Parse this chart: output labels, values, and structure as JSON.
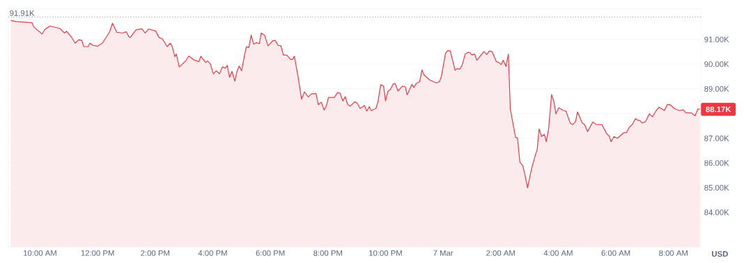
{
  "chart_data": {
    "type": "area",
    "color": "#ea3943",
    "x": [
      "--03-06T08:59",
      "--03-06T09:11",
      "--03-06T09:43",
      "--03-06T09:47",
      "--03-06T10:04",
      "--03-06T10:10",
      "--03-06T10:20",
      "--03-06T10:41",
      "--03-06T10:51",
      "--03-06T10:55",
      "--03-06T11:05",
      "--03-06T11:13",
      "--03-06T11:21",
      "--03-06T11:27",
      "--03-06T11:31",
      "--03-06T11:40",
      "--03-06T11:44",
      "--03-06T11:50",
      "--03-06T12:00",
      "--03-06T12:10",
      "--03-06T12:25",
      "--03-06T12:31",
      "--03-06T12:40",
      "--03-06T12:51",
      "--03-06T13:00",
      "--03-06T13:05",
      "--03-06T13:08",
      "--03-06T13:20",
      "--03-06T13:32",
      "--03-06T13:39",
      "--03-06T13:46",
      "--03-06T14:01",
      "--03-06T14:08",
      "--03-06T14:15",
      "--03-06T14:25",
      "--03-06T14:31",
      "--03-06T14:35",
      "--03-06T14:41",
      "--03-06T14:44",
      "--03-06T14:50",
      "--03-06T15:03",
      "--03-06T15:10",
      "--03-06T15:20",
      "--03-06T15:31",
      "--03-06T15:35",
      "--03-06T15:45",
      "--03-06T15:49",
      "--03-06T15:55",
      "--03-06T16:01",
      "--03-06T16:07",
      "--03-06T16:14",
      "--03-06T16:20",
      "--03-06T16:26",
      "--03-06T16:30",
      "--03-06T16:35",
      "--03-06T16:40",
      "--03-06T16:46",
      "--03-06T16:50",
      "--03-06T16:55",
      "--03-06T17:00",
      "--03-06T17:06",
      "--03-06T17:10",
      "--03-06T17:15",
      "--03-06T17:20",
      "--03-06T17:25",
      "--03-06T17:31",
      "--03-06T17:37",
      "--03-06T17:41",
      "--03-06T17:48",
      "--03-06T17:55",
      "--03-06T18:05",
      "--03-06T18:10",
      "--03-06T18:16",
      "--03-06T18:22",
      "--03-06T18:27",
      "--03-06T18:34",
      "--03-06T18:42",
      "--03-06T18:46",
      "--03-06T18:50",
      "--03-06T18:58",
      "--03-06T19:05",
      "--03-06T19:11",
      "--03-06T19:19",
      "--03-06T19:25",
      "--03-06T19:35",
      "--03-06T19:40",
      "--03-06T19:46",
      "--03-06T19:52",
      "--03-06T19:56",
      "--03-06T20:01",
      "--03-06T20:13",
      "--03-06T20:20",
      "--03-06T20:25",
      "--03-06T20:31",
      "--03-06T20:36",
      "--03-06T20:41",
      "--03-06T20:46",
      "--03-06T20:56",
      "--03-06T21:01",
      "--03-06T21:07",
      "--03-06T21:11",
      "--03-06T21:16",
      "--03-06T21:21",
      "--03-06T21:26",
      "--03-06T21:30",
      "--03-06T21:40",
      "--03-06T21:44",
      "--03-06T21:50",
      "--03-06T21:56",
      "--03-06T22:00",
      "--03-06T22:05",
      "--03-06T22:10",
      "--03-06T22:16",
      "--03-06T22:20",
      "--03-06T22:26",
      "--03-06T22:35",
      "--03-06T22:41",
      "--03-06T22:45",
      "--03-06T22:55",
      "--03-06T22:59",
      "--03-06T23:04",
      "--03-06T23:11",
      "--03-06T23:16",
      "--03-06T23:20",
      "--03-06T23:32",
      "--03-06T23:46",
      "--03-06T23:52",
      "--03-06T23:56",
      "--03-07T00:05",
      "--03-07T00:10",
      "--03-07T00:15",
      "--03-07T00:25",
      "--03-07T00:29",
      "--03-07T00:35",
      "--03-07T00:40",
      "--03-07T00:46",
      "--03-07T00:52",
      "--03-07T00:56",
      "--03-07T01:00",
      "--03-07T01:06",
      "--03-07T01:10",
      "--03-07T01:17",
      "--03-07T01:25",
      "--03-07T01:31",
      "--03-07T01:36",
      "--03-07T01:42",
      "--03-07T01:51",
      "--03-07T01:56",
      "--03-07T02:01",
      "--03-07T02:05",
      "--03-07T02:11",
      "--03-07T02:16",
      "--03-07T02:20",
      "--03-07T02:26",
      "--03-07T02:31",
      "--03-07T02:35",
      "--03-07T02:40",
      "--03-07T02:46",
      "--03-07T02:50",
      "--03-07T02:56",
      "--03-07T03:02",
      "--03-07T03:06",
      "--03-07T03:13",
      "--03-07T03:16",
      "--03-07T03:20",
      "--03-07T03:25",
      "--03-07T03:31",
      "--03-07T03:35",
      "--03-07T03:40",
      "--03-07T03:46",
      "--03-07T03:51",
      "--03-07T03:55",
      "--03-07T04:01",
      "--03-07T04:11",
      "--03-07T04:16",
      "--03-07T04:25",
      "--03-07T04:30",
      "--03-07T04:36",
      "--03-07T04:40",
      "--03-07T04:50",
      "--03-07T04:55",
      "--03-07T05:01",
      "--03-07T05:12",
      "--03-07T05:19",
      "--03-07T05:31",
      "--03-07T05:41",
      "--03-07T05:46",
      "--03-07T05:50",
      "--03-07T05:56",
      "--03-07T06:03",
      "--03-07T06:17",
      "--03-07T06:22",
      "--03-07T06:28",
      "--03-07T06:34",
      "--03-07T06:41",
      "--03-07T06:45",
      "--03-07T06:49",
      "--03-07T06:55",
      "--03-07T07:02",
      "--03-07T07:10",
      "--03-07T07:16",
      "--03-07T07:24",
      "--03-07T07:30",
      "--03-07T07:41",
      "--03-07T07:47",
      "--03-07T07:53",
      "--03-07T08:03",
      "--03-07T08:13",
      "--03-07T08:20",
      "--03-07T08:26",
      "--03-07T08:37",
      "--03-07T08:45",
      "--03-07T08:51",
      "--03-07T08:55"
    ],
    "values": [
      91.77,
      91.72,
      91.68,
      91.51,
      91.22,
      91.4,
      91.54,
      91.45,
      91.26,
      91.33,
      91.11,
      90.85,
      90.99,
      90.96,
      90.71,
      90.71,
      90.85,
      90.76,
      90.73,
      90.85,
      91.31,
      91.66,
      91.29,
      91.26,
      91.31,
      91.11,
      91.08,
      91.39,
      91.43,
      91.26,
      91.42,
      91.34,
      91.08,
      91.02,
      90.71,
      90.85,
      90.74,
      90.3,
      90.41,
      89.89,
      90.12,
      90.33,
      90.18,
      90.1,
      90.32,
      90.07,
      90.13,
      90.01,
      89.61,
      89.73,
      89.61,
      89.89,
      89.84,
      89.95,
      89.47,
      89.71,
      89.31,
      89.68,
      89.93,
      89.73,
      90.35,
      90.71,
      90.67,
      91.17,
      90.81,
      90.87,
      90.83,
      91.26,
      91.17,
      90.74,
      90.95,
      90.96,
      90.76,
      90.74,
      90.37,
      90.37,
      90.19,
      90.19,
      90.32,
      89.47,
      88.58,
      88.88,
      88.67,
      88.79,
      88.81,
      88.36,
      88.46,
      88.14,
      88.28,
      88.65,
      88.65,
      88.85,
      88.83,
      88.51,
      88.69,
      88.37,
      88.3,
      88.48,
      88.42,
      88.21,
      88.26,
      88.33,
      88.1,
      88.28,
      88.12,
      88.21,
      88.46,
      89.17,
      89.11,
      88.51,
      88.91,
      88.97,
      89.2,
      89.22,
      88.91,
      89.11,
      89.09,
      88.76,
      89.18,
      89.06,
      89.22,
      89.29,
      89.77,
      89.57,
      89.36,
      89.24,
      89.29,
      89.47,
      90.44,
      90.56,
      90.53,
      89.75,
      89.82,
      89.8,
      89.98,
      90.41,
      90.48,
      90.46,
      90.37,
      90.41,
      90.16,
      90.32,
      90.51,
      90.39,
      90.53,
      90.51,
      90.1,
      90.07,
      89.98,
      90.16,
      89.91,
      90.41,
      88.19,
      87.55,
      87.04,
      87.01,
      86.03,
      85.89,
      85.57,
      84.99,
      85.57,
      85.89,
      86.37,
      86.54,
      87.38,
      87.07,
      87.16,
      86.86,
      87.41,
      88.77,
      88.47,
      87.99,
      88.23,
      88.12,
      88.1,
      87.61,
      87.55,
      87.68,
      88.07,
      87.62,
      87.55,
      87.27,
      87.66,
      87.56,
      87.55,
      87.18,
      87.09,
      86.86,
      87.07,
      87.0,
      87.23,
      87.23,
      87.45,
      87.55,
      87.8,
      87.73,
      87.73,
      87.62,
      87.68,
      87.99,
      87.87,
      88.12,
      88.26,
      88.12,
      88.36,
      88.36,
      88.19,
      88.12,
      88.16,
      88.03,
      88.03,
      87.91,
      88.19,
      88.17
    ],
    "xlim": [
      "--03-06T08:54",
      "--03-07T08:57"
    ],
    "ylim": [
      82.6,
      92.25
    ],
    "xticks": [
      {
        "value": "--03-06T10:00",
        "label": "10:00 AM"
      },
      {
        "value": "--03-06T12:00",
        "label": "12:00 PM"
      },
      {
        "value": "--03-06T14:00",
        "label": "2:00 PM"
      },
      {
        "value": "--03-06T16:00",
        "label": "4:00 PM"
      },
      {
        "value": "--03-06T18:00",
        "label": "6:00 PM"
      },
      {
        "value": "--03-06T20:00",
        "label": "8:00 PM"
      },
      {
        "value": "--03-06T22:00",
        "label": "10:00 PM"
      },
      {
        "value": "--03-07T00:00",
        "label": "7 Mar"
      },
      {
        "value": "--03-07T02:00",
        "label": "2:00 AM"
      },
      {
        "value": "--03-07T04:00",
        "label": "4:00 AM"
      },
      {
        "value": "--03-07T06:00",
        "label": "6:00 AM"
      },
      {
        "value": "--03-07T08:00",
        "label": "8:00 AM"
      }
    ],
    "yticks": [
      {
        "value": 84,
        "label": "84.00K"
      },
      {
        "value": 85,
        "label": "85.00K"
      },
      {
        "value": 86,
        "label": "86.00K"
      },
      {
        "value": 87,
        "label": "87.00K"
      },
      {
        "value": 88,
        "label": null
      },
      {
        "value": 89,
        "label": "89.00K"
      },
      {
        "value": 90,
        "label": "90.00K"
      },
      {
        "value": 91,
        "label": "91.00K"
      }
    ],
    "ylabel": "USD",
    "grid": "y",
    "marker": "none",
    "line_style": "solid",
    "legend": false,
    "ref_lines": [
      {
        "axis": "y",
        "value": 91.91,
        "label": "91.91K",
        "color": "#9aa3b0",
        "line_style": "dotted"
      }
    ],
    "annotations": [
      {
        "text": "88.17K",
        "x": "--03-07T08:55",
        "y": 88.17
      }
    ]
  }
}
